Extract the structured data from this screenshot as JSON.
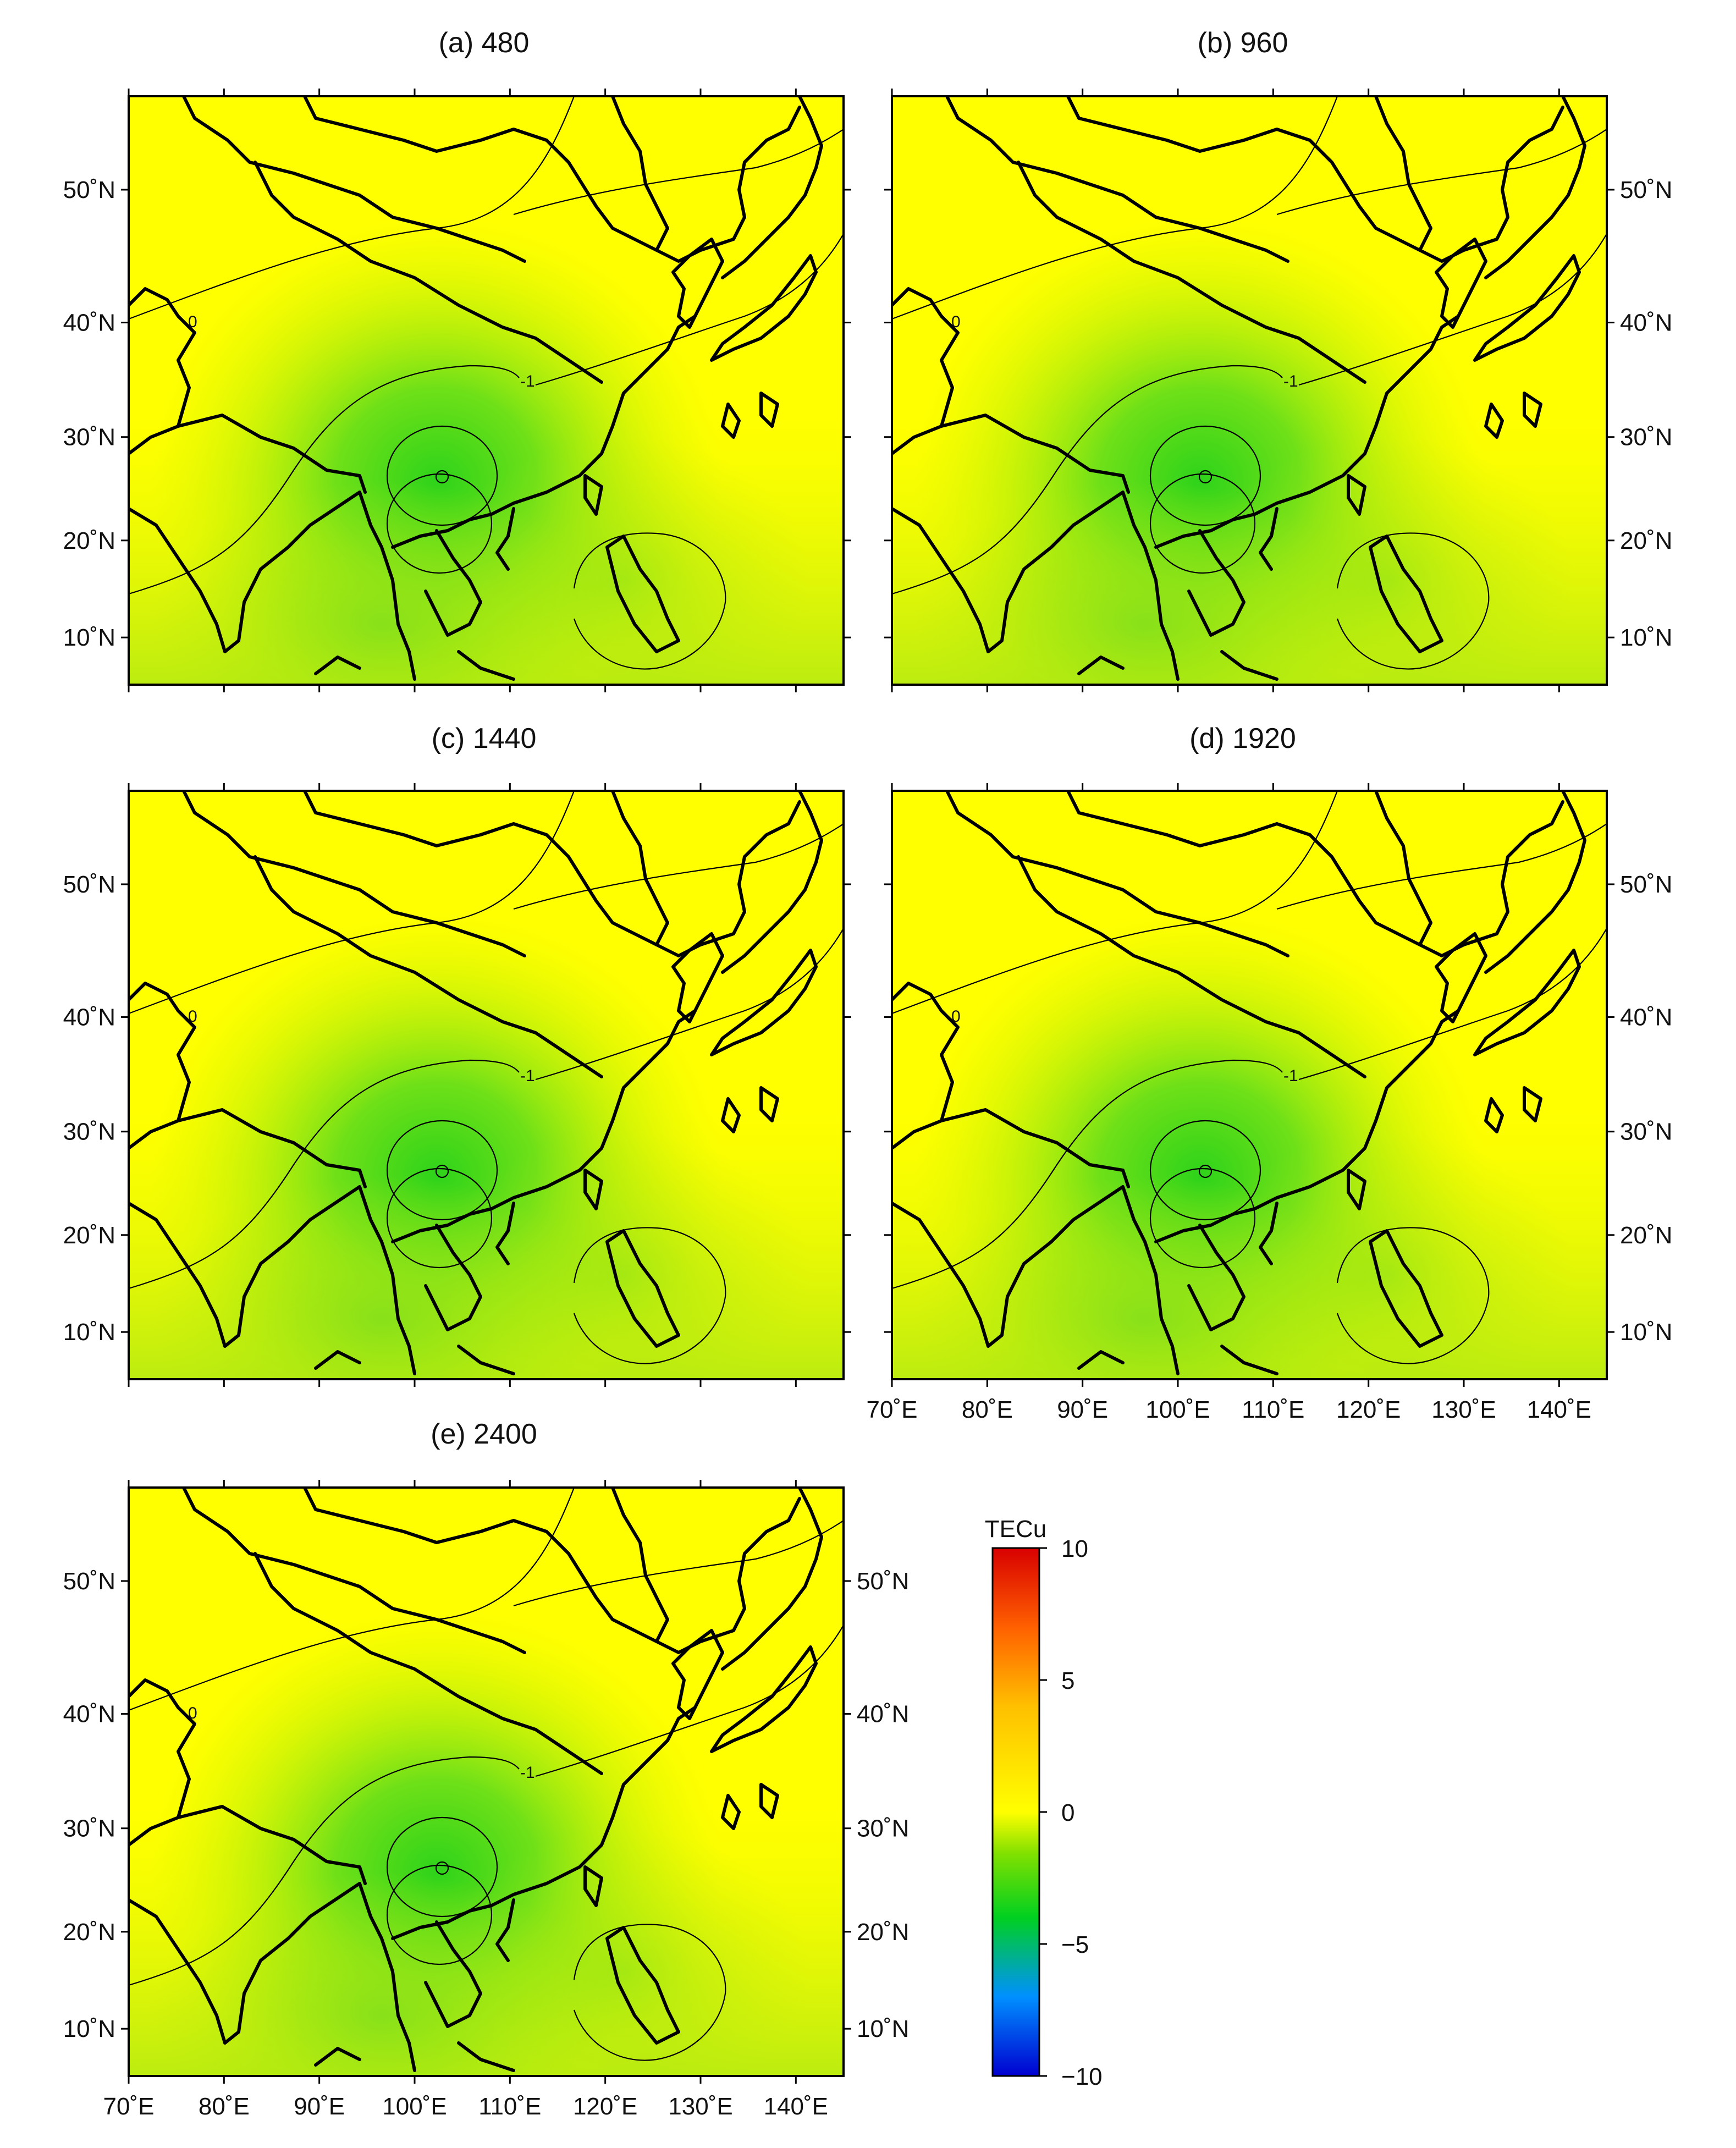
{
  "figure": {
    "panels": [
      {
        "id": "a",
        "title": "(a) 480"
      },
      {
        "id": "b",
        "title": "(b) 960"
      },
      {
        "id": "c",
        "title": "(c) 1440"
      },
      {
        "id": "d",
        "title": "(d) 1920"
      },
      {
        "id": "e",
        "title": "(e) 2400"
      }
    ],
    "map_extent": {
      "lon_min": 70,
      "lon_max": 145,
      "lat_min": 5,
      "lat_max": 56
    },
    "lon_ticks": [
      "70˚E",
      "80˚E",
      "90˚E",
      "100˚E",
      "110˚E",
      "120˚E",
      "130˚E",
      "140˚E"
    ],
    "lat_ticks": [
      "10˚N",
      "20˚N",
      "30˚N",
      "40˚N",
      "50˚N"
    ],
    "contour_labels": [
      "0",
      "-1"
    ],
    "colorbar": {
      "unit": "TECu",
      "tick_labels": [
        "10",
        "5",
        "0",
        "−5",
        "−10"
      ],
      "range": [
        -10,
        10
      ],
      "colors": [
        "#0000d0",
        "#00a0ff",
        "#00d000",
        "#ffff00",
        "#ffa000",
        "#e00000"
      ]
    }
  }
}
